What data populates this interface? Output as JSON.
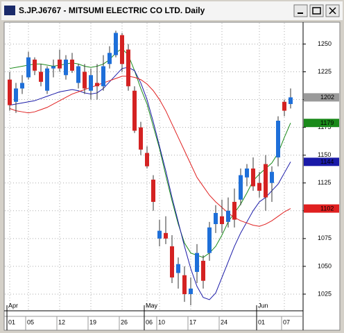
{
  "window_title": "S.JP.J6767 - MITSUMI ELECTRIC CO LTD. Daily",
  "chart_data": {
    "type": "candlestick",
    "categories": [
      "01",
      null,
      null,
      "05",
      null,
      null,
      null,
      null,
      "12",
      null,
      null,
      null,
      null,
      "19",
      null,
      null,
      null,
      null,
      "26",
      null,
      null,
      null,
      "06",
      null,
      "10",
      null,
      null,
      null,
      null,
      "17",
      null,
      null,
      null,
      null,
      "24",
      null,
      null,
      null,
      null,
      null,
      "01",
      null,
      null,
      null,
      "07",
      null
    ],
    "months": [
      {
        "label": "Apr",
        "category": 0
      },
      {
        "label": "May",
        "category": 22
      },
      {
        "label": "Jun",
        "category": 40
      }
    ],
    "open": [
      1218,
      1198,
      1210,
      1220,
      1236,
      1225,
      1208,
      1228,
      1236,
      1222,
      1236,
      1215,
      1225,
      1208,
      1215,
      1212,
      1232,
      1240,
      1258,
      1245,
      1208,
      1175,
      1152,
      1128,
      1075,
      1080,
      1068,
      1044,
      1042,
      1025,
      1045,
      1055,
      1062,
      1088,
      1095,
      1090,
      1108,
      1110,
      1130,
      1138,
      1125,
      1142,
      1125,
      1148,
      1198,
      1196
    ],
    "high": [
      1225,
      1215,
      1222,
      1243,
      1238,
      1232,
      1230,
      1236,
      1245,
      1240,
      1242,
      1232,
      1232,
      1228,
      1232,
      1240,
      1248,
      1262,
      1260,
      1250,
      1212,
      1180,
      1158,
      1132,
      1092,
      1095,
      1078,
      1058,
      1050,
      1040,
      1070,
      1060,
      1090,
      1105,
      1110,
      1112,
      1120,
      1138,
      1142,
      1148,
      1135,
      1150,
      1140,
      1185,
      1200,
      1210
    ],
    "low": [
      1190,
      1188,
      1205,
      1218,
      1222,
      1212,
      1205,
      1220,
      1225,
      1218,
      1224,
      1210,
      1205,
      1200,
      1200,
      1208,
      1228,
      1238,
      1225,
      1208,
      1170,
      1150,
      1138,
      1100,
      1068,
      1070,
      1035,
      1030,
      1018,
      1015,
      1035,
      1030,
      1055,
      1080,
      1080,
      1085,
      1085,
      1105,
      1122,
      1118,
      1112,
      1100,
      1108,
      1140,
      1185,
      1192
    ],
    "close": [
      1195,
      1210,
      1215,
      1238,
      1226,
      1216,
      1228,
      1230,
      1228,
      1236,
      1226,
      1230,
      1210,
      1222,
      1212,
      1230,
      1242,
      1260,
      1232,
      1212,
      1172,
      1155,
      1140,
      1108,
      1082,
      1075,
      1040,
      1052,
      1025,
      1030,
      1062,
      1037,
      1085,
      1098,
      1088,
      1100,
      1092,
      1132,
      1138,
      1122,
      1118,
      1112,
      1135,
      1181,
      1190,
      1202
    ],
    "up_color": "#1e6fd9",
    "down_color": "#d42222",
    "last_price_color": "#9a9a9a",
    "moving_averages": [
      {
        "color": "#1a8a1a",
        "values": [
          1228,
          1229,
          1230,
          1231,
          1232,
          1232,
          1231,
          1230,
          1231,
          1232,
          1233,
          1232,
          1230,
          1229,
          1230,
          1232,
          1236,
          1242,
          1246,
          1240,
          1226,
          1210,
          1196,
          1176,
          1156,
          1132,
          1109,
          1088,
          1071,
          1062,
          1060,
          1058,
          1062,
          1068,
          1078,
          1090,
          1098,
          1106,
          1116,
          1127,
          1133,
          1138,
          1143,
          1152,
          1166,
          1179
        ]
      },
      {
        "color": "#1a1aa8",
        "values": [
          1195,
          1196,
          1197,
          1198,
          1199,
          1201,
          1203,
          1205,
          1207,
          1208,
          1209,
          1208,
          1206,
          1205,
          1206,
          1210,
          1216,
          1222,
          1228,
          1229,
          1226,
          1215,
          1200,
          1180,
          1158,
          1136,
          1112,
          1090,
          1068,
          1048,
          1032,
          1022,
          1020,
          1026,
          1040,
          1054,
          1068,
          1080,
          1090,
          1100,
          1108,
          1112,
          1118,
          1124,
          1134,
          1144
        ]
      },
      {
        "color": "#e02020",
        "values": [
          1192,
          1190,
          1189,
          1188,
          1189,
          1191,
          1193,
          1196,
          1199,
          1202,
          1205,
          1207,
          1209,
          1211,
          1213,
          1215,
          1217,
          1219,
          1221,
          1221,
          1220,
          1218,
          1214,
          1208,
          1200,
          1190,
          1178,
          1166,
          1154,
          1142,
          1130,
          1122,
          1114,
          1108,
          1103,
          1098,
          1094,
          1091,
          1089,
          1087,
          1086,
          1088,
          1091,
          1095,
          1099,
          1102
        ]
      }
    ],
    "ylim": [
      1010,
      1269
    ],
    "yticks": [
      1025,
      1050,
      1075,
      1100,
      1125,
      1150,
      1175,
      1200,
      1225,
      1250
    ],
    "grid": true
  }
}
